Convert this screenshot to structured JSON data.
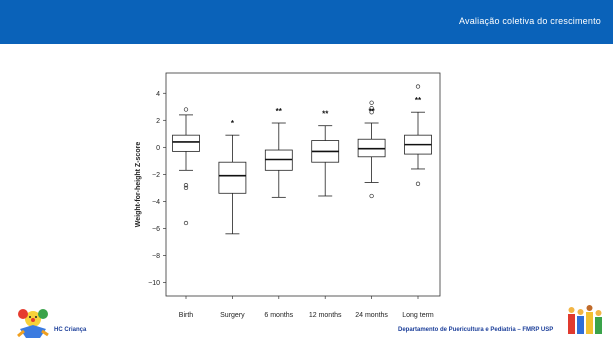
{
  "header": {
    "title": "Avaliação coletiva do crescimento"
  },
  "footer": {
    "left_label": "HC Criança",
    "right_label": "Departamento de Puericultura e Pediatria – FMRP USP"
  },
  "logos": {
    "left": "clown-mascot-logo",
    "right": "child-figures-logo"
  },
  "colors": {
    "banner": "#0a62b9",
    "footer_text": "#1c3f9a"
  },
  "chart_data": {
    "type": "boxplot",
    "ylabel": "Weight-for-height Z-score",
    "xlabel": "",
    "ylim": [
      -11,
      5.5
    ],
    "yticks": [
      4,
      2,
      0,
      -2,
      -4,
      -6,
      -8,
      -10
    ],
    "categories": [
      "Birth",
      "Surgery",
      "6 months",
      "12 months",
      "24 months",
      "Long term"
    ],
    "boxes": [
      {
        "category": "Birth",
        "whisker_low": -1.7,
        "q1": -0.3,
        "median": 0.4,
        "q3": 0.9,
        "whisker_high": 2.4,
        "outliers": [
          2.8,
          -2.8,
          -3.0,
          -5.6
        ],
        "significance": ""
      },
      {
        "category": "Surgery",
        "whisker_low": -6.4,
        "q1": -3.4,
        "median": -2.1,
        "q3": -1.1,
        "whisker_high": 0.9,
        "outliers": [],
        "significance": "*"
      },
      {
        "category": "6 months",
        "whisker_low": -3.7,
        "q1": -1.7,
        "median": -0.9,
        "q3": -0.2,
        "whisker_high": 1.8,
        "outliers": [],
        "significance": "**"
      },
      {
        "category": "12 months",
        "whisker_low": -3.6,
        "q1": -1.1,
        "median": -0.3,
        "q3": 0.5,
        "whisker_high": 1.6,
        "outliers": [],
        "significance": "**"
      },
      {
        "category": "24 months",
        "whisker_low": -2.6,
        "q1": -0.7,
        "median": -0.1,
        "q3": 0.6,
        "whisker_high": 1.8,
        "outliers": [
          3.3,
          2.9,
          2.6,
          -3.6
        ],
        "significance": "**"
      },
      {
        "category": "Long term",
        "whisker_low": -1.6,
        "q1": -0.5,
        "median": 0.2,
        "q3": 0.9,
        "whisker_high": 2.6,
        "outliers": [
          4.5,
          -2.7
        ],
        "significance": "**"
      }
    ]
  }
}
